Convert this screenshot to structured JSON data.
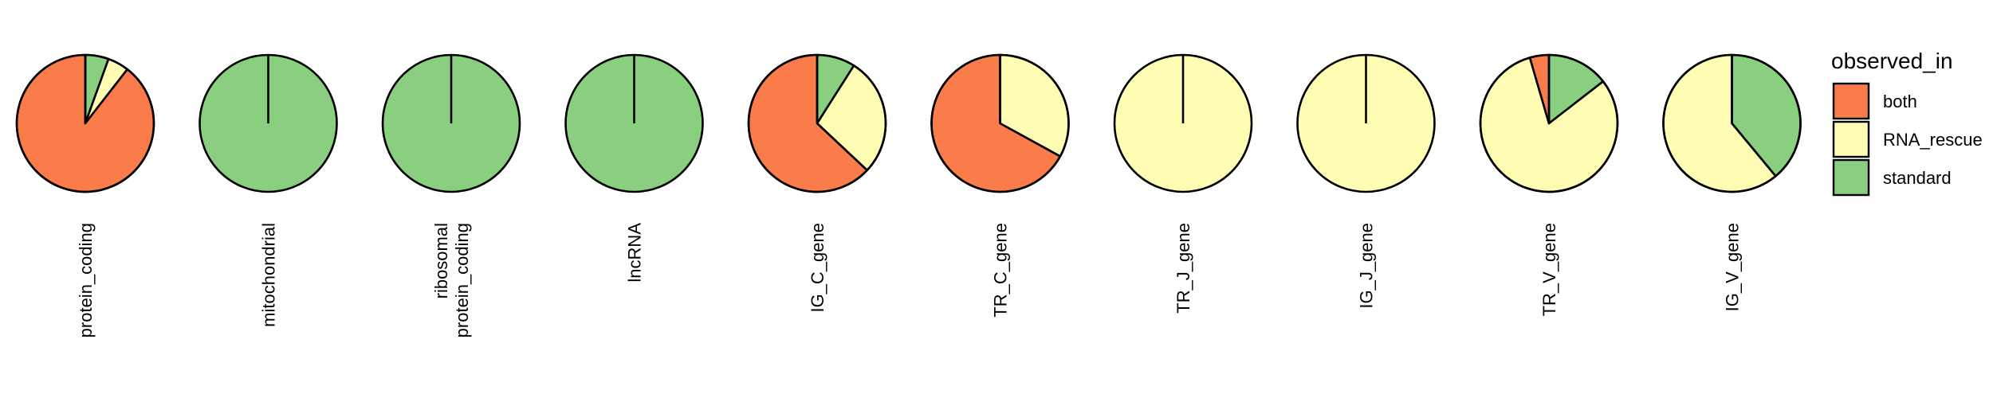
{
  "chart_data": {
    "type": "pie",
    "colors": {
      "both": "#F97C4A",
      "RNA_rescue": "#FFFDB3",
      "standard": "#8ACF80"
    },
    "legend": {
      "title": "observed_in",
      "placement": "right",
      "entries": [
        "both",
        "RNA_rescue",
        "standard"
      ]
    },
    "pies": [
      {
        "label": [
          "protein_coding"
        ],
        "slices": [
          {
            "name": "standard",
            "value": 0.055
          },
          {
            "name": "RNA_rescue",
            "value": 0.05
          },
          {
            "name": "both",
            "value": 0.895
          }
        ]
      },
      {
        "label": [
          "mitochondrial"
        ],
        "slices": [
          {
            "name": "standard",
            "value": 1.0
          }
        ]
      },
      {
        "label": [
          "ribosomal",
          "protein_coding"
        ],
        "slices": [
          {
            "name": "standard",
            "value": 1.0
          }
        ]
      },
      {
        "label": [
          "lncRNA"
        ],
        "slices": [
          {
            "name": "standard",
            "value": 1.0
          }
        ]
      },
      {
        "label": [
          "IG_C_gene"
        ],
        "slices": [
          {
            "name": "standard",
            "value": 0.09
          },
          {
            "name": "RNA_rescue",
            "value": 0.28
          },
          {
            "name": "both",
            "value": 0.63
          }
        ]
      },
      {
        "label": [
          "TR_C_gene"
        ],
        "slices": [
          {
            "name": "RNA_rescue",
            "value": 0.33
          },
          {
            "name": "both",
            "value": 0.67
          }
        ]
      },
      {
        "label": [
          "TR_J_gene"
        ],
        "slices": [
          {
            "name": "RNA_rescue",
            "value": 1.0
          }
        ]
      },
      {
        "label": [
          "IG_J_gene"
        ],
        "slices": [
          {
            "name": "RNA_rescue",
            "value": 1.0
          }
        ]
      },
      {
        "label": [
          "TR_V_gene"
        ],
        "slices": [
          {
            "name": "standard",
            "value": 0.145
          },
          {
            "name": "RNA_rescue",
            "value": 0.81
          },
          {
            "name": "both",
            "value": 0.045
          }
        ]
      },
      {
        "label": [
          "IG_V_gene"
        ],
        "slices": [
          {
            "name": "standard",
            "value": 0.39
          },
          {
            "name": "RNA_rescue",
            "value": 0.61
          }
        ]
      }
    ]
  }
}
